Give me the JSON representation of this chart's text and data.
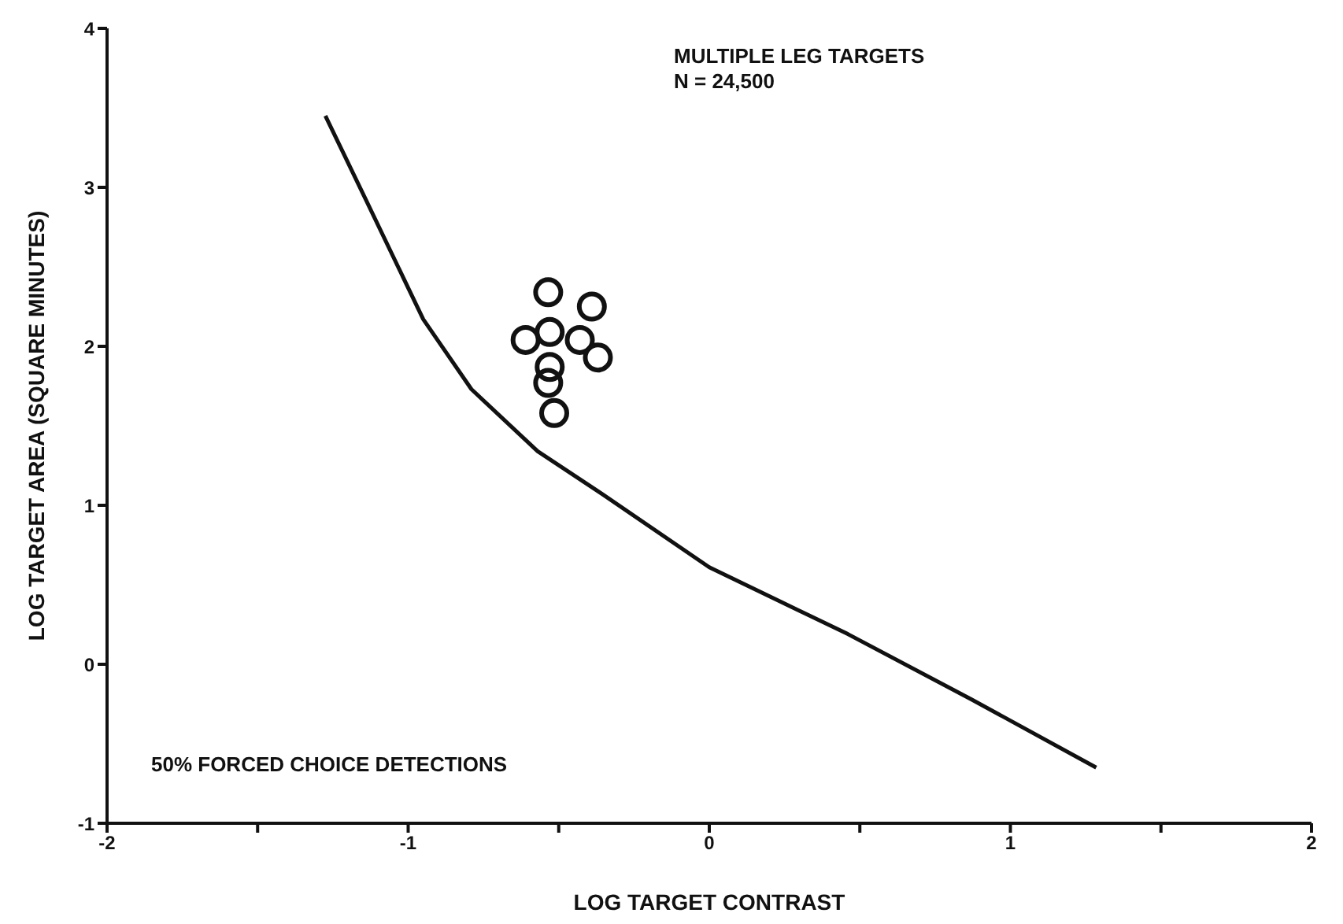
{
  "chart_data": {
    "type": "scatter",
    "title": "MULTIPLE LEG TARGETS",
    "xlabel": "LOG TARGET CONTRAST",
    "ylabel": "LOG TARGET AREA (SQUARE MINUTES)",
    "annotations": [
      "N = 24,500",
      "50% FORCED CHOICE DETECTIONS"
    ],
    "xlim": [
      -2,
      2
    ],
    "xticks": [
      -2,
      {
        "value": -1.5,
        "label": null
      },
      -1,
      {
        "value": -0.5,
        "label": null
      },
      0,
      {
        "value": 0.5,
        "label": null
      },
      1,
      {
        "value": 1.5,
        "label": null
      },
      2
    ],
    "ylim": [
      -1,
      4
    ],
    "yticks": [
      -1,
      0,
      1,
      2,
      3,
      4
    ],
    "grid": false,
    "legend": false,
    "series": [
      {
        "type": "line",
        "color": "#111111",
        "line_style": "solid",
        "marker": "none",
        "x": [
          -1.275,
          -1.14,
          -0.95,
          -0.79,
          -0.57,
          -0.355,
          0,
          0.46,
          0.87,
          1.285
        ],
        "values": [
          3.45,
          2.92,
          2.17,
          1.73,
          1.34,
          1.07,
          0.61,
          0.19,
          -0.22,
          -0.65
        ]
      },
      {
        "color": "#111111",
        "marker": "circle",
        "x": [
          -0.535,
          -0.39,
          -0.61,
          -0.53,
          -0.43,
          -0.37,
          -0.53,
          -0.535,
          -0.515
        ],
        "values": [
          2.34,
          2.25,
          2.04,
          2.09,
          2.04,
          1.93,
          1.87,
          1.77,
          1.58
        ]
      }
    ]
  }
}
